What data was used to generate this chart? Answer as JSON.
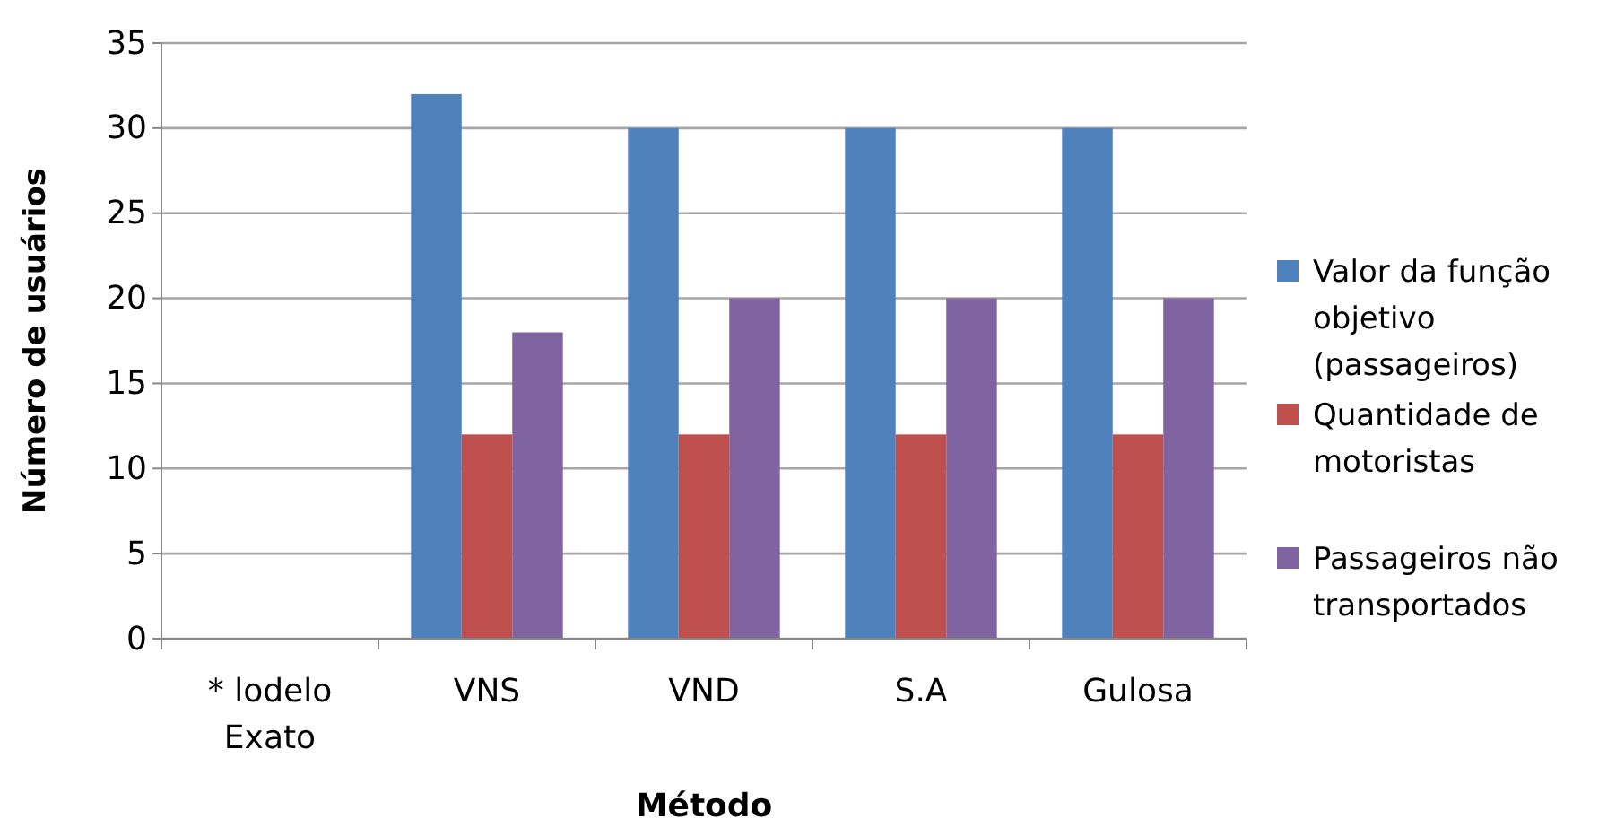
{
  "chart_data": {
    "type": "bar",
    "xlabel": "Método",
    "ylabel": "Número de usuários",
    "categories": [
      "* lodelo Exato",
      "VNS",
      "VND",
      "S.A",
      "Gulosa"
    ],
    "series": [
      {
        "name": "Valor da função objetivo (passageiros)",
        "color": "#4f81bd",
        "values": [
          null,
          32,
          30,
          30,
          30
        ]
      },
      {
        "name": "Quantidade de motoristas",
        "color": "#c0504d",
        "values": [
          null,
          12,
          12,
          12,
          12
        ]
      },
      {
        "name": "Passageiros não transportados",
        "color": "#8064a2",
        "values": [
          null,
          18,
          20,
          20,
          20
        ]
      }
    ],
    "ylim": [
      0,
      35
    ],
    "yticks": [
      0,
      5,
      10,
      15,
      20,
      25,
      30,
      35
    ],
    "grid": "y",
    "legend": "right"
  }
}
